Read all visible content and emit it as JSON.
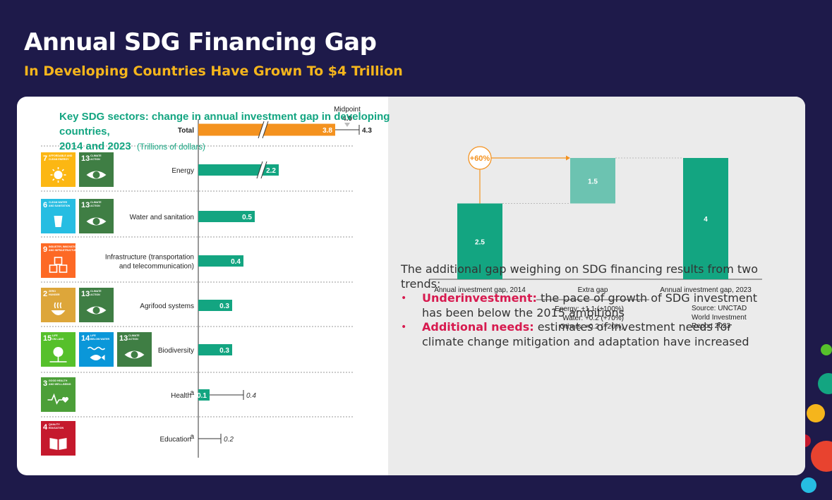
{
  "page": {
    "title": "Annual SDG Financing Gap",
    "subtitle": "In Developing Countries Have Grown To $4 Trillion"
  },
  "colors": {
    "teal": "#13a581",
    "light_teal": "#6cc3b1",
    "orange": "#f4921f",
    "bullet": "#d71a4f"
  },
  "chart_data": [
    {
      "type": "bar",
      "orientation": "horizontal",
      "categories": [
        "Total",
        "Energy",
        "Water and sanitation",
        "Infrastructure (transportation and telecommunication)",
        "Agrifood systems",
        "Biodiversity",
        "Health",
        "Education"
      ],
      "category_lines": [
        [
          "Total"
        ],
        [
          "Energy"
        ],
        [
          "Water and sanitation"
        ],
        [
          "Infrastructure (transportation",
          "and telecommunication)"
        ],
        [
          "Agrifood systems"
        ],
        [
          "Biodiversity"
        ],
        [
          "Health"
        ],
        [
          "Education"
        ]
      ],
      "category_superscripts": [
        "",
        "",
        "",
        "",
        "",
        "",
        "a",
        "a"
      ],
      "series": [
        {
          "values": [
            3.8,
            2.2,
            0.5,
            0.4,
            0.3,
            0.3,
            0.1,
            null
          ],
          "labels": [
            "3.8",
            "2.2",
            "0.5",
            "0.4",
            "0.3",
            "0.3",
            "0.1",
            ""
          ]
        },
        {
          "values": [
            4.3,
            null,
            null,
            null,
            null,
            null,
            0.4,
            0.2
          ],
          "labels": [
            "4.3",
            "",
            "",
            "",
            "",
            "",
            "0.4",
            "0.2"
          ]
        }
      ],
      "midpoint": {
        "label": "Midpoint",
        "value": 4.0,
        "value_label": "4.0"
      },
      "axis_breaks": [
        "Total",
        "Energy"
      ],
      "sdg_goals": [
        [],
        [
          {
            "num": "7",
            "lines": [
              "AFFORDABLE AND",
              "CLEAN ENERGY"
            ],
            "color": "#fcb713",
            "icon": "sun-power-icon"
          },
          {
            "num": "13",
            "lines": [
              "CLIMATE",
              "ACTION"
            ],
            "color": "#3f7e44",
            "icon": "eye-globe-icon"
          }
        ],
        [
          {
            "num": "6",
            "lines": [
              "CLEAN WATER",
              "AND SANITATION"
            ],
            "color": "#26bde2",
            "icon": "water-drop-icon"
          },
          {
            "num": "13",
            "lines": [
              "CLIMATE",
              "ACTION"
            ],
            "color": "#3f7e44",
            "icon": "eye-globe-icon"
          }
        ],
        [
          {
            "num": "9",
            "lines": [
              "INDUSTRY, INNOVATION",
              "AND INFRASTRUCTURE"
            ],
            "color": "#fd6925",
            "icon": "cubes-icon"
          }
        ],
        [
          {
            "num": "2",
            "lines": [
              "ZERO",
              "HUNGER"
            ],
            "color": "#dda63a",
            "icon": "bowl-icon"
          },
          {
            "num": "13",
            "lines": [
              "CLIMATE",
              "ACTION"
            ],
            "color": "#3f7e44",
            "icon": "eye-globe-icon"
          }
        ],
        [
          {
            "num": "15",
            "lines": [
              "LIFE",
              "ON LAND"
            ],
            "color": "#56c02b",
            "icon": "tree-icon"
          },
          {
            "num": "14",
            "lines": [
              "LIFE",
              "BELOW WATER"
            ],
            "color": "#0a97d9",
            "icon": "fish-icon"
          },
          {
            "num": "13",
            "lines": [
              "CLIMATE",
              "ACTION"
            ],
            "color": "#3f7e44",
            "icon": "eye-globe-icon"
          }
        ],
        [
          {
            "num": "3",
            "lines": [
              "GOOD HEALTH",
              "AND WELL-BEING"
            ],
            "color": "#4c9f38",
            "icon": "heartbeat-icon"
          }
        ],
        [
          {
            "num": "4",
            "lines": [
              "QUALITY",
              "EDUCATION"
            ],
            "color": "#c5192d",
            "icon": "book-icon"
          }
        ]
      ]
    },
    {
      "type": "bar",
      "subtype": "waterfall",
      "title": "Key SDG sectors: change in annual investment gap in developing countries,",
      "title_line2": "2014 and 2023",
      "unit": "(Trillions of dollars)",
      "categories": [
        "Annual investment gap, 2014",
        "Extra gap",
        "Annual investment gap, 2023"
      ],
      "bars": [
        {
          "base": 0,
          "value": 2.5,
          "label": "2.5"
        },
        {
          "base": 2.5,
          "value": 1.5,
          "label": "1.5"
        },
        {
          "base": 0,
          "value": 4,
          "label": "4"
        }
      ],
      "ylim": [
        0,
        4
      ],
      "growth_badge": "+60%",
      "extra_gap_breakdown": [
        "Energy: +1.1 (+100%)",
        "Water: +0.2 (+70%)",
        "Others: +0.2 (+20%)"
      ],
      "source_lines": [
        "Source: UNCTAD",
        "World Investment",
        "Report 2023"
      ]
    }
  ],
  "trends": {
    "intro": "The additional gap weighing on SDG financing results from two trends:",
    "items": [
      {
        "bold": "Underinvestment:",
        "text": " the pace of growth of SDG investment has been below the 2015 ambitions"
      },
      {
        "bold": "Additional needs:",
        "text": " estimates of investment needs for climate change mitigation and adaptation have increased"
      }
    ]
  }
}
